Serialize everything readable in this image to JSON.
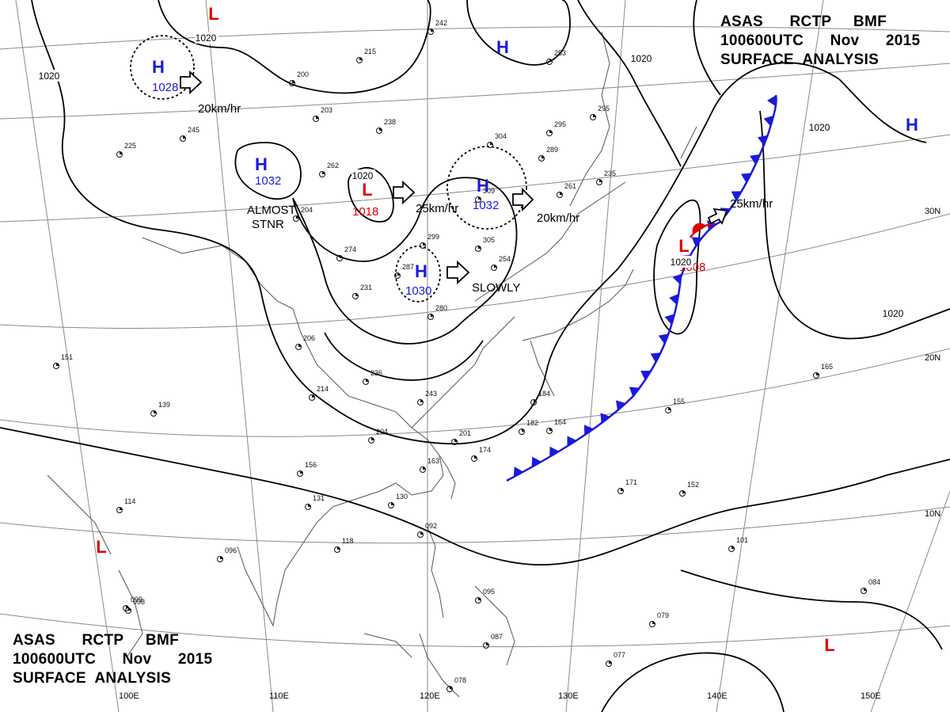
{
  "header_top": {
    "line1": "ASAS      RCTP     BMF",
    "line2": "100600UTC      Nov      2015",
    "line3": "SURFACE  ANALYSIS"
  },
  "header_bottom": {
    "line1": "ASAS      RCTP     BMF",
    "line2": "100600UTC      Nov      2015",
    "line3": "SURFACE  ANALYSIS"
  },
  "colors": {
    "high": "#1a1adb",
    "low": "#e00000",
    "isobar": "#000000",
    "front": "#1a1adb",
    "grid": "#888888",
    "coast": "#555555"
  },
  "pressure_centers": [
    {
      "type": "H",
      "value": "1028"
    },
    {
      "type": "H",
      "value": "1032"
    },
    {
      "type": "L",
      "value": "1018"
    },
    {
      "type": "H",
      "value": "1030"
    },
    {
      "type": "H",
      "value": "1032"
    },
    {
      "type": "H",
      "value": ""
    },
    {
      "type": "L",
      "value": "1008"
    },
    {
      "type": "L",
      "value": ""
    },
    {
      "type": "H",
      "value": ""
    },
    {
      "type": "L",
      "value": ""
    },
    {
      "type": "L",
      "value": ""
    }
  ],
  "isobar_labels": [
    "1020",
    "1020",
    "1020",
    "1020",
    "1020",
    "1020",
    "1020"
  ],
  "motion_labels": [
    "20km/hr",
    "25km/hr",
    "20km/hr",
    "SLOWLY",
    "25km/hr"
  ],
  "stationary_note": {
    "line1": "ALMOST",
    "line2": "STNR"
  },
  "lat_labels": [
    "30N",
    "20N",
    "10N"
  ],
  "lon_labels": [
    "100E",
    "110E",
    "120E",
    "130E",
    "140E",
    "150E"
  ],
  "station_values": [
    "242",
    "215",
    "200",
    "203",
    "238",
    "262",
    "204",
    "274",
    "231",
    "206",
    "236",
    "214",
    "204",
    "243",
    "299",
    "287",
    "305",
    "254",
    "280",
    "289",
    "295",
    "295",
    "261",
    "235",
    "201",
    "163",
    "174",
    "182",
    "164",
    "184",
    "156",
    "131",
    "130",
    "118",
    "096",
    "092",
    "095",
    "087",
    "078",
    "099",
    "079",
    "077",
    "084",
    "101",
    "152",
    "171",
    "155",
    "165",
    "151",
    "139",
    "114",
    "098",
    "245",
    "225",
    "253",
    "304",
    "309"
  ]
}
